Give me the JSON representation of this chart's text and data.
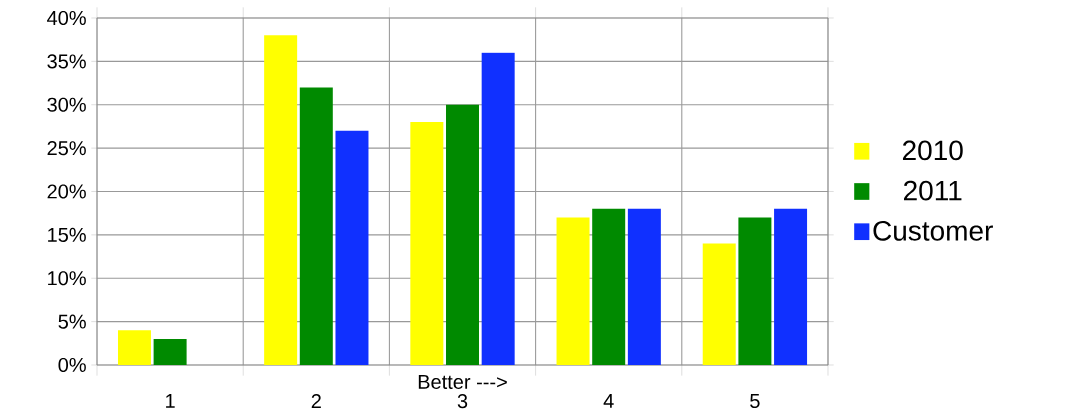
{
  "chart_data": {
    "type": "bar",
    "xlabel": "Better --->",
    "categories": [
      "1",
      "2",
      "3",
      "4",
      "5"
    ],
    "series": [
      {
        "name": "2010",
        "color": "#ffff00",
        "values": [
          4,
          38,
          28,
          17,
          14
        ]
      },
      {
        "name": "2011",
        "color": "#008a00",
        "values": [
          3,
          32,
          30,
          18,
          17
        ]
      },
      {
        "name": "Customer",
        "color": "#1030ff",
        "values": [
          0,
          27,
          36,
          18,
          18
        ]
      }
    ],
    "ylim": [
      0,
      40
    ],
    "yticks": [
      {
        "value": 0,
        "label": "0%"
      },
      {
        "value": 5,
        "label": "5%"
      },
      {
        "value": 10,
        "label": "10%"
      },
      {
        "value": 15,
        "label": "15%"
      },
      {
        "value": 20,
        "label": "20%"
      },
      {
        "value": 25,
        "label": "25%"
      },
      {
        "value": 30,
        "label": "30%"
      },
      {
        "value": 35,
        "label": "35%"
      },
      {
        "value": 40,
        "label": "40%"
      }
    ],
    "grid": true,
    "legend": "right"
  }
}
